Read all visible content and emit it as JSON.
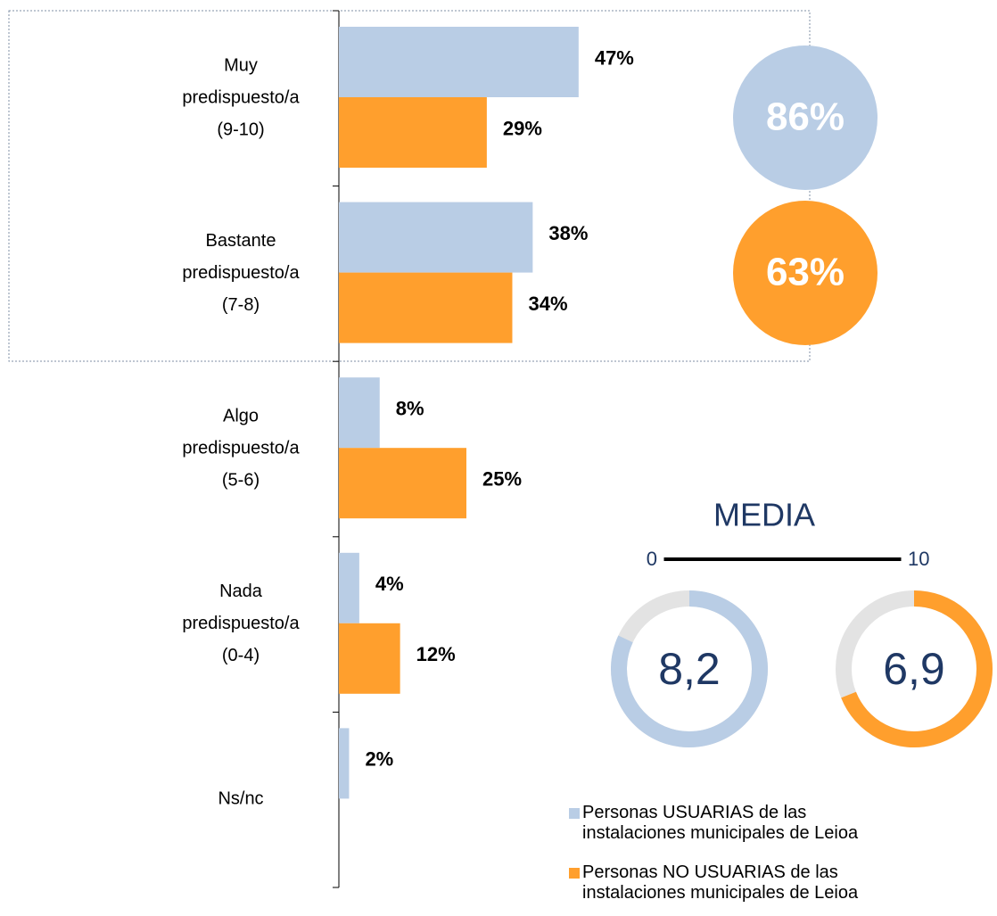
{
  "chart_data": {
    "type": "bar",
    "orientation": "horizontal",
    "categories": [
      "Muy predispuesto/a (9-10)",
      "Bastante predispuesto/a (7-8)",
      "Algo predispuesto/a (5-6)",
      "Nada predispuesto/a (0-4)",
      "Ns/nc"
    ],
    "series": [
      {
        "name": "Personas USUARIAS de las instalaciones municipales de Leioa",
        "color": "#b9cde5",
        "values": [
          47,
          38,
          8,
          4,
          2
        ],
        "value_labels": [
          "47%",
          "38%",
          "8%",
          "4%",
          "2%"
        ]
      },
      {
        "name": "Personas NO USUARIAS de las instalaciones municipales de Leioa",
        "color": "#ff9f2d",
        "values": [
          29,
          34,
          25,
          12,
          null
        ],
        "value_labels": [
          "29%",
          "34%",
          "25%",
          "12%",
          null
        ]
      }
    ],
    "xlim": [
      0,
      100
    ],
    "totals": {
      "values": [
        86,
        63
      ],
      "value_labels": [
        "86%",
        "63%"
      ]
    },
    "media": {
      "title": "MEDIA",
      "lim": [
        0,
        10
      ],
      "ticks": [
        0,
        10
      ],
      "values": [
        8.2,
        6.9
      ],
      "value_labels": [
        "8,2",
        "6,9"
      ],
      "track_color": "#e3e3e3"
    }
  }
}
